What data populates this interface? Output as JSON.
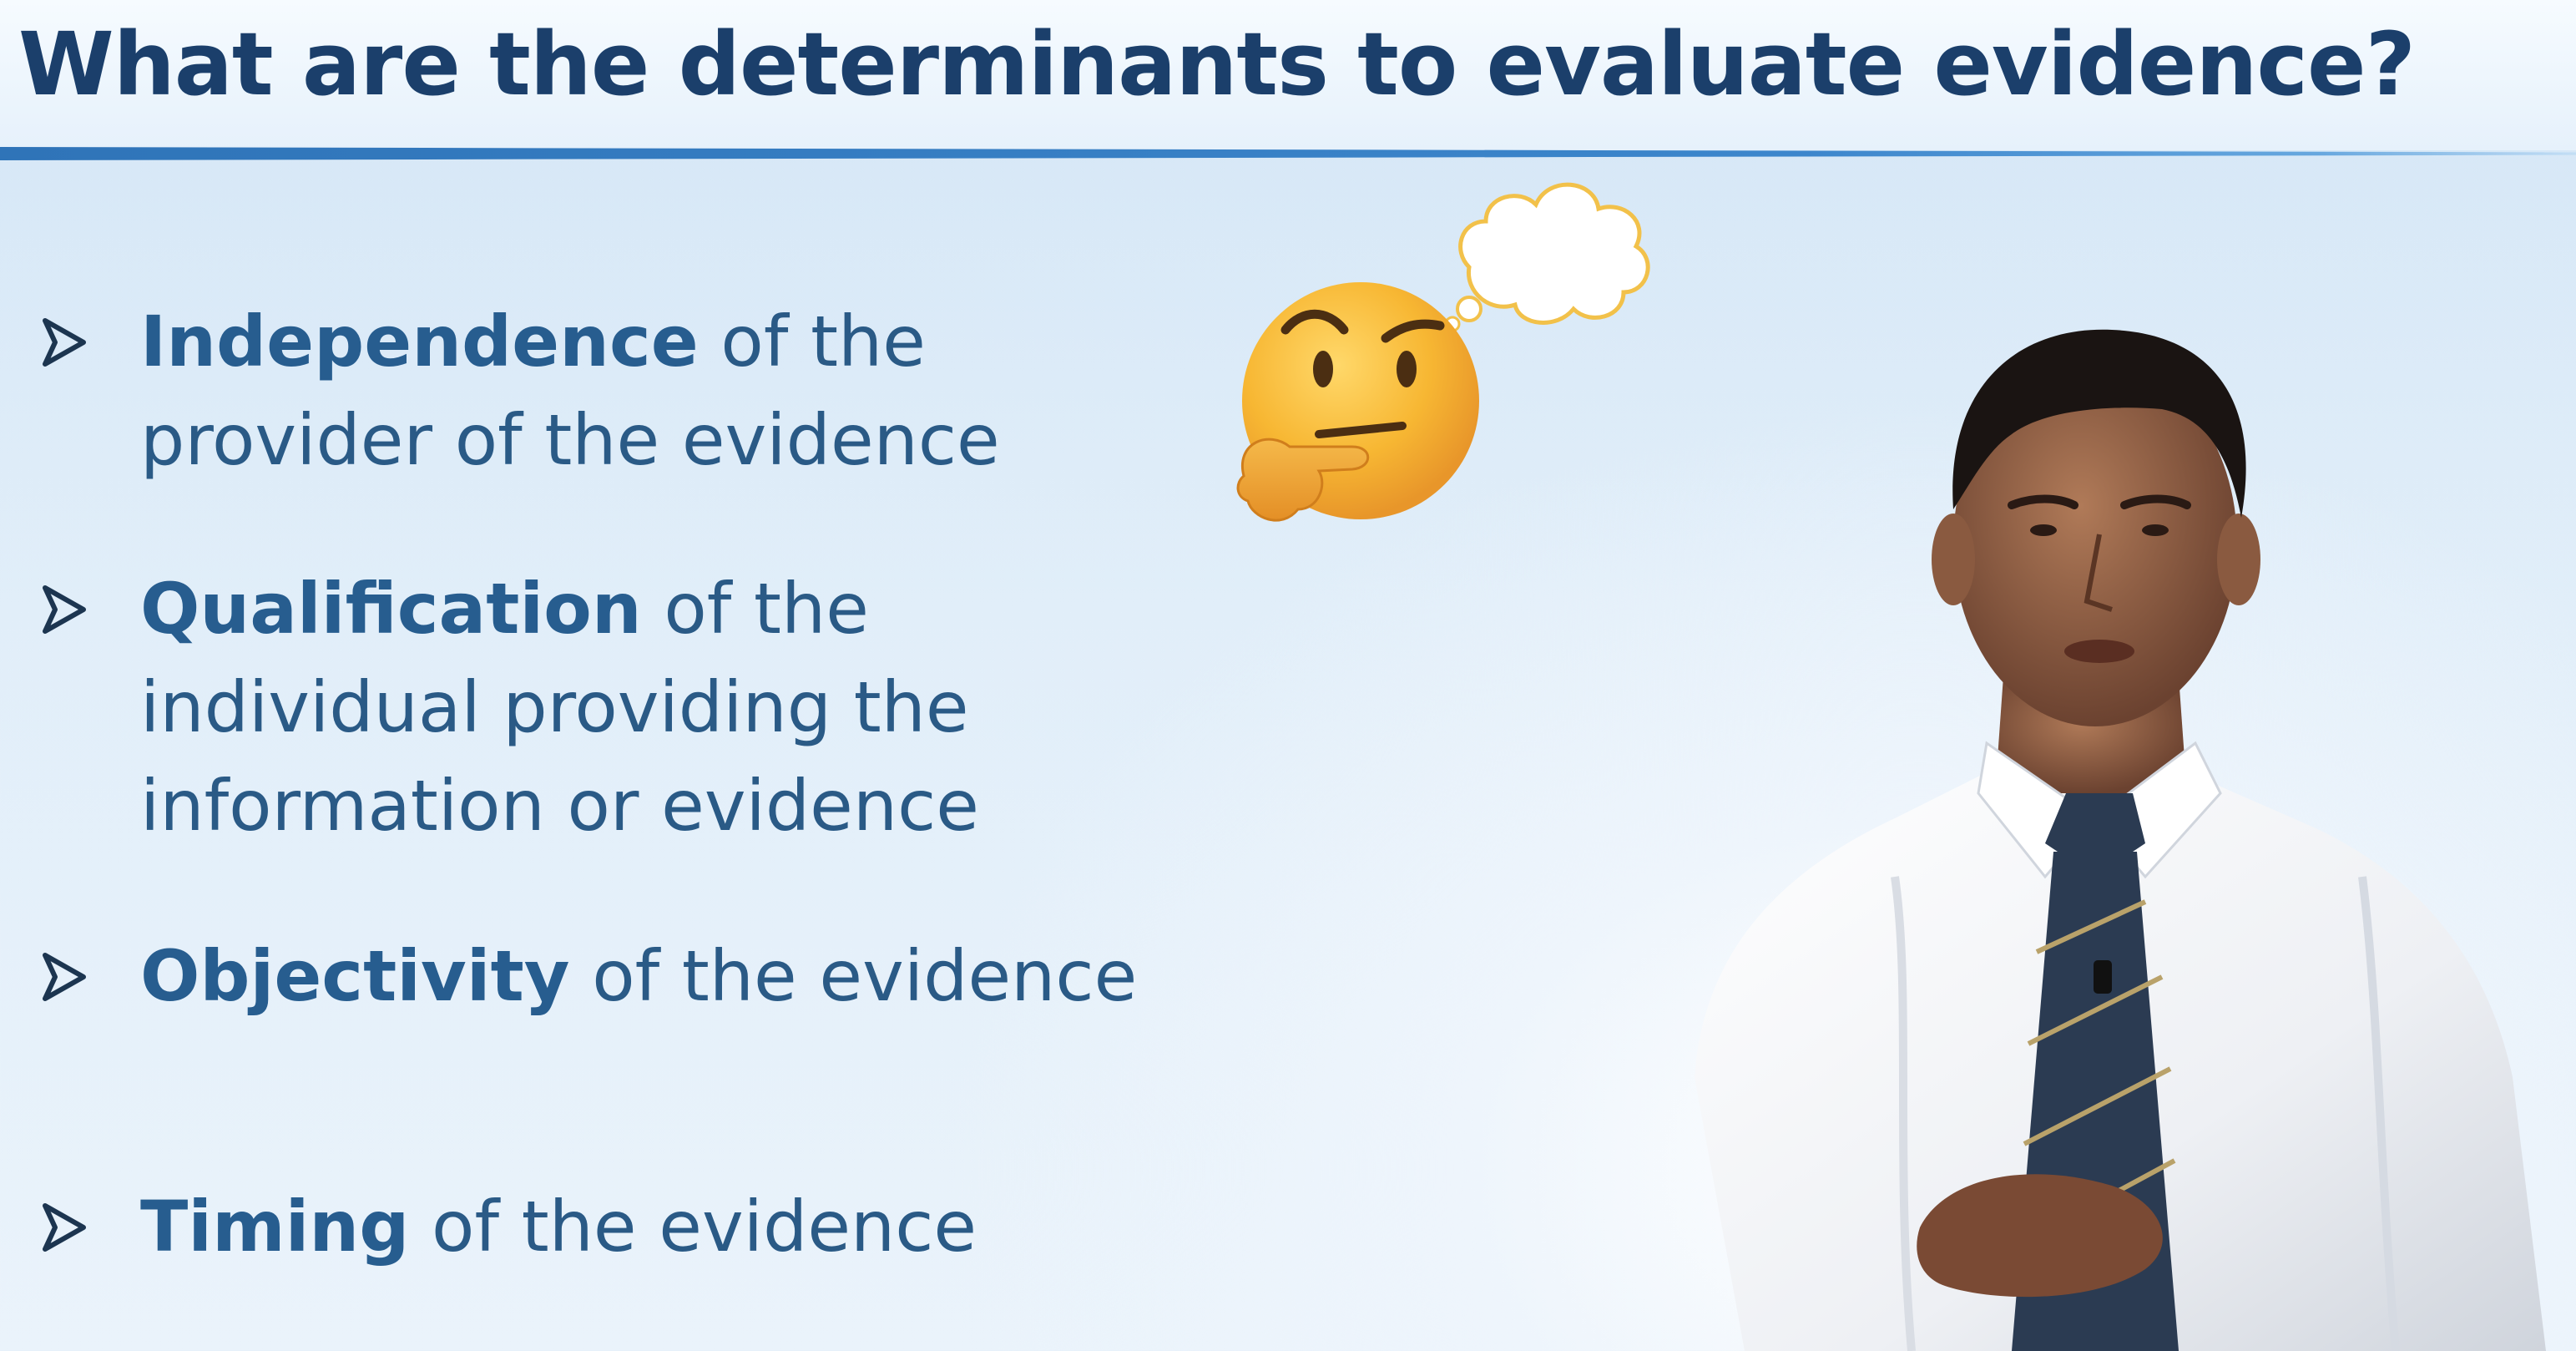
{
  "slide": {
    "title": "What are the determinants to evaluate evidence?",
    "bullets": [
      {
        "term": "Independence",
        "rest_line1": " of the",
        "lines": [
          "provider of the evidence"
        ]
      },
      {
        "term": "Qualification",
        "rest_line1": " of the",
        "lines": [
          "individual providing the",
          "information or evidence"
        ]
      },
      {
        "term": "Objectivity",
        "rest_line1": " of the evidence",
        "lines": []
      },
      {
        "term": "Timing",
        "rest_line1": " of the evidence",
        "lines": []
      }
    ]
  },
  "icons": {
    "bullet": "arrow-bullet-icon",
    "emoji": "thinking-face-icon",
    "bubble": "thought-bubble-icon"
  },
  "colors": {
    "title": "#1b3f6b",
    "accent_rule": "#2f74b8",
    "bullet_text": "#2a5a86"
  }
}
